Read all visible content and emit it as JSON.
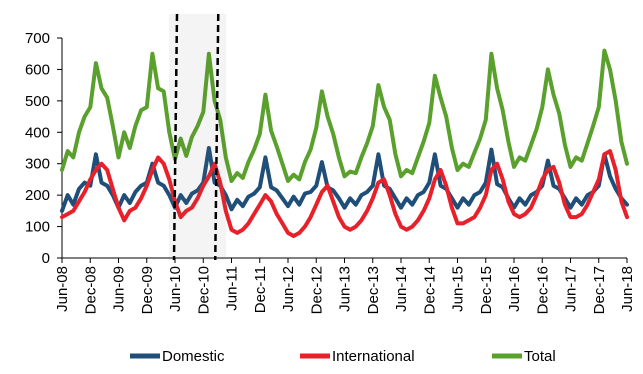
{
  "chart_data": {
    "type": "line",
    "title": "",
    "xlabel": "",
    "ylabel": "",
    "ylim": [
      0,
      700
    ],
    "y_ticks": [
      0,
      100,
      200,
      300,
      400,
      500,
      600,
      700
    ],
    "x_tick_labels": [
      "Jun-08",
      "Dec-08",
      "Jun-09",
      "Dec-09",
      "Jun-10",
      "Dec-10",
      "Jun-11",
      "Dec-11",
      "Jun-12",
      "Dec-12",
      "Jun-13",
      "Dec-13",
      "Jun-14",
      "Dec-14",
      "Jun-15",
      "Dec-15",
      "Jun-16",
      "Dec-16",
      "Jun-17",
      "Dec-17",
      "Jun-18"
    ],
    "grid": false,
    "legend_position": "bottom",
    "annotation": "dashed rectangle highlighting Jun-10 to Dec-10",
    "series": [
      {
        "name": "Domestic",
        "color": "#1f4e79",
        "values": [
          150,
          200,
          170,
          220,
          240,
          230,
          330,
          240,
          230,
          200,
          160,
          200,
          175,
          210,
          230,
          240,
          300,
          240,
          230,
          200,
          160,
          200,
          175,
          205,
          215,
          240,
          350,
          240,
          230,
          200,
          155,
          185,
          165,
          195,
          205,
          225,
          320,
          225,
          215,
          190,
          165,
          195,
          170,
          205,
          210,
          230,
          305,
          225,
          215,
          190,
          160,
          190,
          170,
          200,
          210,
          230,
          330,
          230,
          220,
          190,
          160,
          190,
          170,
          200,
          210,
          240,
          330,
          230,
          220,
          190,
          160,
          190,
          170,
          200,
          210,
          240,
          345,
          235,
          225,
          190,
          160,
          190,
          170,
          200,
          210,
          230,
          310,
          230,
          220,
          190,
          160,
          190,
          170,
          200,
          210,
          230,
          330,
          260,
          220,
          190,
          170
        ]
      },
      {
        "name": "International",
        "color": "#e8202a",
        "values": [
          130,
          140,
          150,
          180,
          210,
          250,
          280,
          300,
          280,
          220,
          160,
          120,
          150,
          160,
          190,
          230,
          280,
          320,
          300,
          250,
          180,
          130,
          150,
          160,
          190,
          230,
          260,
          300,
          240,
          150,
          90,
          80,
          90,
          110,
          140,
          170,
          200,
          180,
          140,
          110,
          80,
          70,
          80,
          100,
          130,
          170,
          210,
          230,
          180,
          130,
          100,
          90,
          100,
          120,
          150,
          190,
          240,
          250,
          200,
          140,
          100,
          90,
          100,
          120,
          150,
          190,
          250,
          280,
          230,
          160,
          110,
          110,
          120,
          130,
          160,
          200,
          280,
          300,
          250,
          180,
          140,
          130,
          140,
          160,
          200,
          250,
          280,
          290,
          240,
          170,
          130,
          130,
          140,
          170,
          210,
          250,
          330,
          340,
          280,
          180,
          130
        ]
      },
      {
        "name": "Total",
        "color": "#5aa02c",
        "values": [
          280,
          340,
          320,
          400,
          450,
          480,
          620,
          540,
          510,
          420,
          320,
          400,
          350,
          420,
          470,
          480,
          650,
          540,
          530,
          400,
          315,
          380,
          325,
          385,
          420,
          465,
          650,
          500,
          440,
          320,
          245,
          270,
          255,
          305,
          345,
          395,
          520,
          405,
          355,
          300,
          245,
          265,
          250,
          305,
          345,
          415,
          530,
          450,
          395,
          320,
          260,
          275,
          270,
          320,
          365,
          420,
          550,
          480,
          440,
          330,
          260,
          280,
          270,
          320,
          370,
          430,
          580,
          510,
          450,
          350,
          280,
          300,
          290,
          335,
          380,
          440,
          650,
          540,
          470,
          370,
          290,
          320,
          310,
          360,
          410,
          480,
          600,
          520,
          460,
          360,
          290,
          320,
          310,
          365,
          420,
          480,
          660,
          600,
          500,
          370,
          300
        ]
      }
    ]
  }
}
